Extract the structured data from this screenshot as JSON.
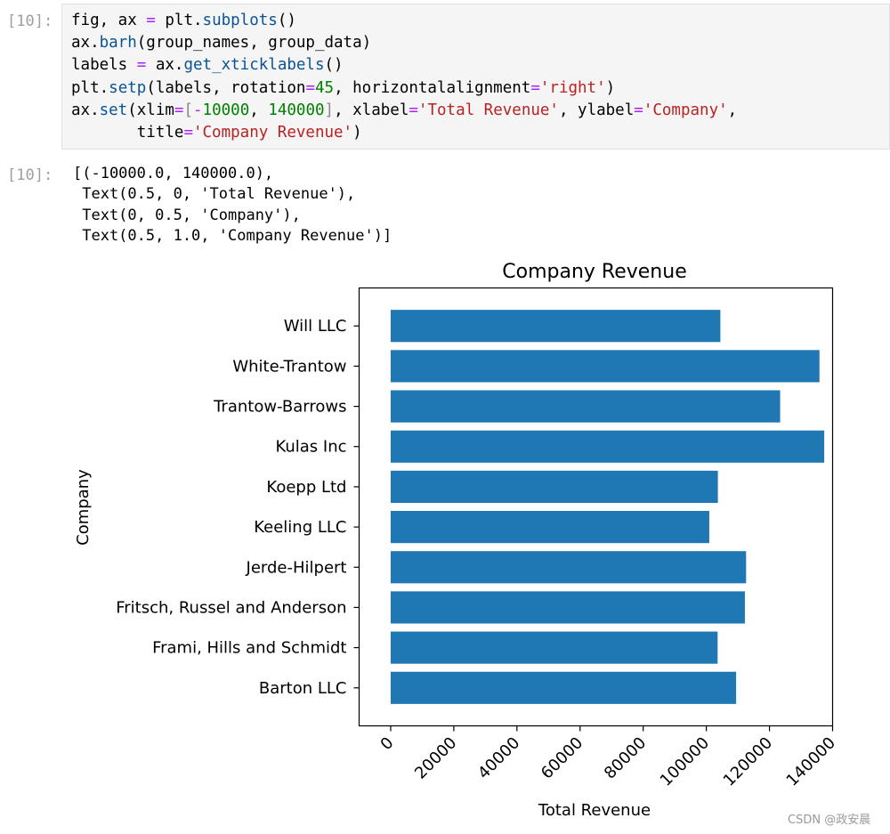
{
  "notebook": {
    "input_prompt": "[10]:",
    "output_prompt": "[10]:",
    "code_lines": [
      [
        {
          "t": "fig, ax "
        },
        {
          "t": "=",
          "c": "op"
        },
        {
          "t": " plt."
        },
        {
          "t": "subplots",
          "c": "fn"
        },
        {
          "t": "()"
        }
      ],
      [
        {
          "t": "ax."
        },
        {
          "t": "barh",
          "c": "fn"
        },
        {
          "t": "(group_names, group_data)"
        }
      ],
      [
        {
          "t": "labels "
        },
        {
          "t": "=",
          "c": "op"
        },
        {
          "t": " ax."
        },
        {
          "t": "get_xticklabels",
          "c": "fn"
        },
        {
          "t": "()"
        }
      ],
      [
        {
          "t": "plt."
        },
        {
          "t": "setp",
          "c": "fn"
        },
        {
          "t": "(labels, rotation"
        },
        {
          "t": "=",
          "c": "op"
        },
        {
          "t": "45",
          "c": "num"
        },
        {
          "t": ", horizontalalignment"
        },
        {
          "t": "=",
          "c": "op"
        },
        {
          "t": "'right'",
          "c": "str"
        },
        {
          "t": ")"
        }
      ],
      [
        {
          "t": "ax."
        },
        {
          "t": "set",
          "c": "fn"
        },
        {
          "t": "(xlim"
        },
        {
          "t": "=",
          "c": "op"
        },
        {
          "t": "[",
          "c": "br"
        },
        {
          "t": "-",
          "c": "op"
        },
        {
          "t": "10000",
          "c": "num"
        },
        {
          "t": ", "
        },
        {
          "t": "140000",
          "c": "num"
        },
        {
          "t": "]",
          "c": "br"
        },
        {
          "t": ", xlabel"
        },
        {
          "t": "=",
          "c": "op"
        },
        {
          "t": "'Total Revenue'",
          "c": "str"
        },
        {
          "t": ", ylabel"
        },
        {
          "t": "=",
          "c": "op"
        },
        {
          "t": "'Company'",
          "c": "str"
        },
        {
          "t": ","
        }
      ],
      [
        {
          "t": "       title"
        },
        {
          "t": "=",
          "c": "op"
        },
        {
          "t": "'Company Revenue'",
          "c": "str"
        },
        {
          "t": ")"
        }
      ]
    ],
    "output_text": "[(-10000.0, 140000.0),\n Text(0.5, 0, 'Total Revenue'),\n Text(0, 0.5, 'Company'),\n Text(0.5, 1.0, 'Company Revenue')]",
    "watermark": "CSDN @政安晨"
  },
  "chart_data": {
    "type": "bar",
    "orientation": "horizontal",
    "title": "Company Revenue",
    "xlabel": "Total Revenue",
    "ylabel": "Company",
    "xlim": [
      -10000,
      140000
    ],
    "xticks": [
      0,
      20000,
      40000,
      60000,
      80000,
      100000,
      120000,
      140000
    ],
    "categories": [
      "Barton LLC",
      "Frami, Hills and Schmidt",
      "Fritsch, Russel and Anderson",
      "Jerde-Hilpert",
      "Keeling LLC",
      "Koepp Ltd",
      "Kulas Inc",
      "Trantow-Barrows",
      "White-Trantow",
      "Will LLC"
    ],
    "values": [
      109438,
      103570,
      112214,
      112591,
      100935,
      103660,
      137352,
      123382,
      135841,
      104437
    ],
    "bar_color": "#1f77b4",
    "grid": false
  }
}
